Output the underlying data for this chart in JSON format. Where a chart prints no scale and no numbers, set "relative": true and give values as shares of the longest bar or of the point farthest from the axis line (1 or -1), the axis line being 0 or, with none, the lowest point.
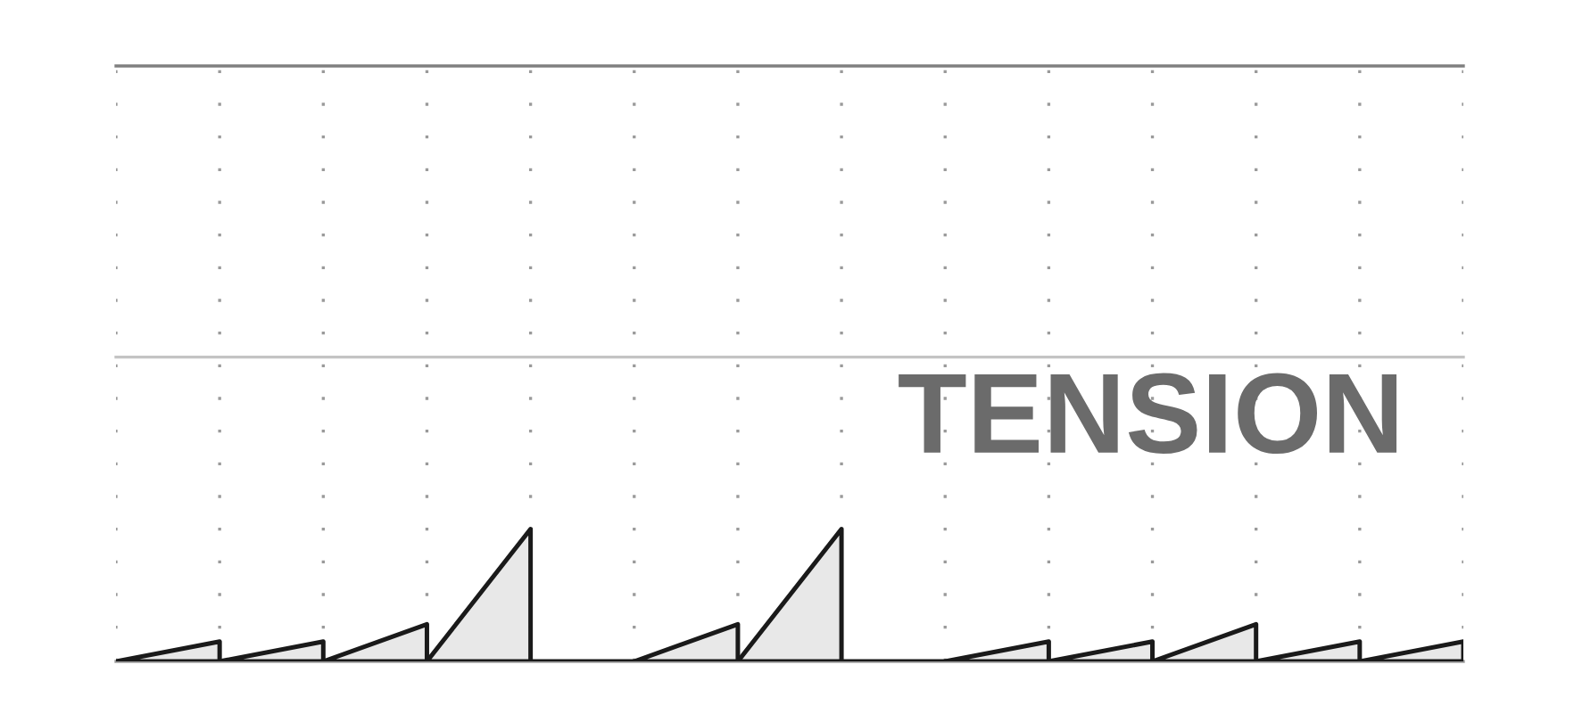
{
  "chart_data": {
    "type": "area",
    "relative": true,
    "categories": [
      null,
      null,
      null,
      null,
      null,
      null,
      null,
      null,
      null,
      null,
      null,
      null,
      null,
      null
    ],
    "series": [
      {
        "color": "#1a1a1a",
        "values": [
          0,
          0.15,
          null,
          null,
          null,
          null,
          null,
          null,
          null,
          null,
          null,
          null,
          null,
          null
        ]
      },
      {
        "color": "#1a1a1a",
        "values": [
          null,
          0,
          0.15,
          null,
          null,
          null,
          null,
          null,
          null,
          null,
          null,
          null,
          null,
          null
        ]
      },
      {
        "color": "#1a1a1a",
        "values": [
          null,
          null,
          0,
          0.28,
          null,
          null,
          null,
          null,
          null,
          null,
          null,
          null,
          null,
          null
        ]
      },
      {
        "color": "#1a1a1a",
        "values": [
          null,
          null,
          null,
          0,
          1,
          null,
          null,
          null,
          null,
          null,
          null,
          null,
          null,
          null
        ]
      },
      {
        "type": "line",
        "color": "#1a1a1a",
        "values": [
          null,
          null,
          null,
          null,
          0,
          0,
          null,
          null,
          null,
          null,
          null,
          null,
          null,
          null
        ]
      },
      {
        "color": "#1a1a1a",
        "values": [
          null,
          null,
          null,
          null,
          null,
          0,
          0.28,
          null,
          null,
          null,
          null,
          null,
          null,
          null
        ]
      },
      {
        "color": "#1a1a1a",
        "values": [
          null,
          null,
          null,
          null,
          null,
          null,
          0,
          1,
          null,
          null,
          null,
          null,
          null,
          null
        ]
      },
      {
        "type": "line",
        "color": "#1a1a1a",
        "values": [
          null,
          null,
          null,
          null,
          null,
          null,
          null,
          0,
          0,
          null,
          null,
          null,
          null,
          null
        ]
      },
      {
        "color": "#1a1a1a",
        "values": [
          null,
          null,
          null,
          null,
          null,
          null,
          null,
          null,
          0,
          0.15,
          null,
          null,
          null,
          null
        ]
      },
      {
        "color": "#1a1a1a",
        "values": [
          null,
          null,
          null,
          null,
          null,
          null,
          null,
          null,
          null,
          0,
          0.15,
          null,
          null,
          null
        ]
      },
      {
        "color": "#1a1a1a",
        "values": [
          null,
          null,
          null,
          null,
          null,
          null,
          null,
          null,
          null,
          null,
          0,
          0.28,
          null,
          null
        ]
      },
      {
        "color": "#1a1a1a",
        "values": [
          null,
          null,
          null,
          null,
          null,
          null,
          null,
          null,
          null,
          null,
          null,
          0,
          0.15,
          null
        ]
      },
      {
        "color": "#1a1a1a",
        "values": [
          null,
          null,
          null,
          null,
          null,
          null,
          null,
          null,
          null,
          null,
          null,
          null,
          0,
          0.15
        ]
      }
    ],
    "ref_lines": [
      {
        "axis": "y",
        "value": 4.5,
        "color": "#7f7f7f"
      },
      {
        "axis": "y",
        "value": 2.3,
        "color": "#c4c4c4"
      }
    ],
    "annotations": [
      "TENSION"
    ],
    "grid": "x",
    "marker": "none",
    "line_style": "solid"
  }
}
